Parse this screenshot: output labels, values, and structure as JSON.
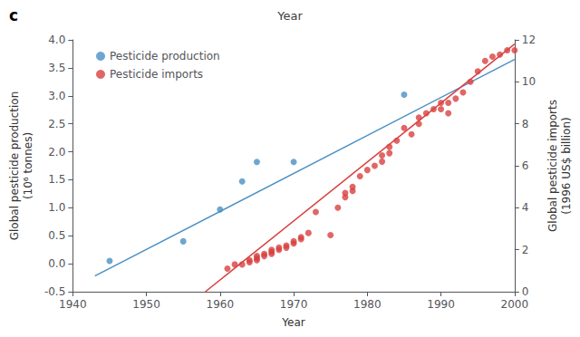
{
  "chart_data": {
    "type": "scatter",
    "title": "Year",
    "annotations": [
      "c"
    ],
    "xlabel": "Year",
    "ylabel": "Global pesticide production\n(10⁶ tonnes)",
    "y2label": "Global pesticide imports\n(1996 US$ billion)",
    "xlim": [
      1940,
      2000
    ],
    "xticks": [
      1940,
      1950,
      1960,
      1970,
      1980,
      1990,
      2000
    ],
    "ylim": [
      -0.5,
      4.0
    ],
    "yticks": [
      -0.5,
      {
        "value": 0.0,
        "label": "0.0"
      },
      0.5,
      {
        "value": 1.0,
        "label": "1.0"
      },
      1.5,
      {
        "value": 2.0,
        "label": "2.0"
      },
      2.5,
      {
        "value": 3.0,
        "label": "3.0"
      },
      3.5,
      {
        "value": 4.0,
        "label": "4.0"
      }
    ],
    "y2lim": [
      0,
      12
    ],
    "y2ticks": [
      0,
      2,
      4,
      6,
      8,
      10,
      12
    ],
    "grid": false,
    "legend": "upper left",
    "series": [
      {
        "name": "Pesticide production",
        "type": "scatter",
        "color": "#4a90c4",
        "x": [
          1945,
          1955,
          1960,
          1963,
          1965,
          1970,
          1985
        ],
        "values": [
          0.05,
          0.4,
          0.97,
          1.47,
          1.82,
          1.82,
          3.02
        ]
      },
      {
        "name": "Pesticide imports",
        "type": "scatter",
        "color": "#d94040",
        "axis": "y2",
        "x": [
          1961,
          1962,
          1963,
          1964,
          1964,
          1965,
          1965,
          1965,
          1966,
          1966,
          1967,
          1967,
          1967,
          1968,
          1968,
          1969,
          1969,
          1970,
          1970,
          1971,
          1971,
          1972,
          1973,
          1975,
          1976,
          1977,
          1977,
          1978,
          1978,
          1979,
          1980,
          1981,
          1982,
          1982,
          1983,
          1983,
          1984,
          1985,
          1986,
          1987,
          1987,
          1988,
          1989,
          1990,
          1990,
          1991,
          1991,
          1992,
          1993,
          1994,
          1995,
          1996,
          1997,
          1998,
          1999,
          2000
        ],
        "values": [
          1.1,
          1.3,
          1.3,
          1.4,
          1.5,
          1.5,
          1.6,
          1.7,
          1.7,
          1.8,
          1.8,
          1.9,
          2.0,
          2.0,
          2.1,
          2.1,
          2.2,
          2.3,
          2.4,
          2.5,
          2.6,
          2.8,
          3.8,
          2.7,
          4.0,
          4.5,
          4.7,
          4.8,
          5.0,
          5.5,
          5.8,
          6.0,
          6.2,
          6.5,
          6.6,
          6.9,
          7.2,
          7.8,
          7.5,
          8.0,
          8.3,
          8.5,
          8.7,
          8.7,
          9.0,
          8.5,
          9.0,
          9.2,
          9.5,
          10.0,
          10.5,
          11.0,
          11.2,
          11.3,
          11.5,
          11.5
        ]
      },
      {
        "type": "line",
        "color": "#4a90c4",
        "x": [
          1943,
          2000
        ],
        "values": [
          -0.22,
          3.65
        ]
      },
      {
        "type": "line",
        "color": "#d94040",
        "axis": "y2",
        "x": [
          1958,
          2000
        ],
        "values": [
          0.0,
          11.8
        ]
      }
    ]
  }
}
